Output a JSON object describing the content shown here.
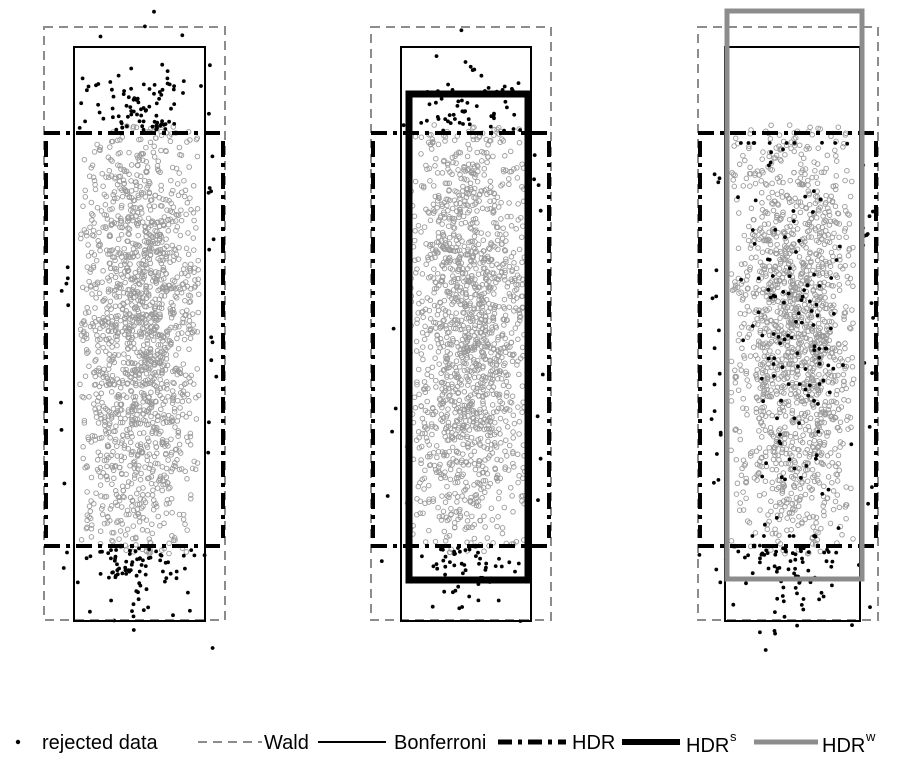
{
  "chart_data": {
    "type": "scatter",
    "panels": [
      {
        "panel": "left",
        "regions": [
          "Wald",
          "Bonferroni",
          "HDR"
        ],
        "accepted_points": 1600,
        "rejected_points": 200
      },
      {
        "panel": "middle",
        "regions": [
          "Wald",
          "Bonferroni",
          "HDR",
          "HDR^s"
        ],
        "accepted_points": 1500,
        "rejected_points": 130
      },
      {
        "panel": "right",
        "regions": [
          "Wald",
          "Bonferroni",
          "HDR",
          "HDR^w"
        ],
        "accepted_points": 1500,
        "rejected_points": 250
      }
    ],
    "legend": {
      "position": "bottom",
      "entries": [
        {
          "key": "rejected",
          "label": "rejected data",
          "style": "point",
          "color": "#000000"
        },
        {
          "key": "wald",
          "label": "Wald",
          "style": "dashed",
          "color": "#8c8c8c"
        },
        {
          "key": "bonf",
          "label": "Bonferroni",
          "style": "solid",
          "color": "#000000"
        },
        {
          "key": "hdr",
          "label": "HDR",
          "style": "dashdot-thick",
          "color": "#000000"
        },
        {
          "key": "hdrs",
          "label": "HDR",
          "sup": "s",
          "style": "solid-thick",
          "color": "#000000"
        },
        {
          "key": "hdrw",
          "label": "HDR",
          "sup": "w",
          "style": "solid-thick",
          "color": "#8c8c8c"
        }
      ]
    },
    "colors": {
      "accepted_points": "#9b9b9b",
      "rejected_points": "#000000",
      "wald": "#8c8c8c",
      "hdrw": "#8c8c8c"
    },
    "axes": "none",
    "grid": false
  }
}
